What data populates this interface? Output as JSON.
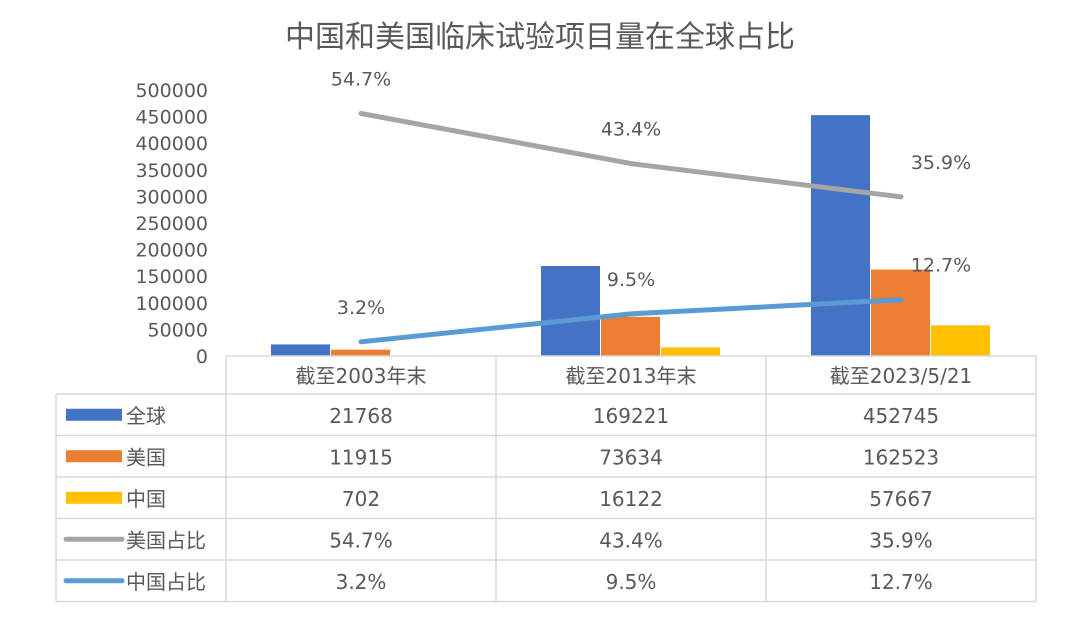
{
  "chart_data": {
    "type": "bar",
    "title": "中国和美国临床试验项目量在全球占比",
    "categories": [
      "截至2003年末",
      "截至2013年末",
      "截至2023/5/21"
    ],
    "ylim": [
      0,
      500000
    ],
    "yticks": [
      "0",
      "50000",
      "100000",
      "150000",
      "200000",
      "250000",
      "300000",
      "350000",
      "400000",
      "450000",
      "500000"
    ],
    "grid": false,
    "legend": "data-table",
    "series": [
      {
        "name": "全球",
        "kind": "bar",
        "color": "#4472C4",
        "values": [
          21768,
          169221,
          452745
        ],
        "labels": [
          "21768",
          "169221",
          "452745"
        ]
      },
      {
        "name": "美国",
        "kind": "bar",
        "color": "#ED7D31",
        "values": [
          11915,
          73634,
          162523
        ],
        "labels": [
          "11915",
          "73634",
          "162523"
        ]
      },
      {
        "name": "中国",
        "kind": "bar",
        "color": "#FFC000",
        "values": [
          702,
          16122,
          57667
        ],
        "labels": [
          "702",
          "16122",
          "57667"
        ]
      },
      {
        "name": "美国占比",
        "kind": "line",
        "color": "#A5A5A5",
        "values": [
          54.7,
          43.4,
          35.9
        ],
        "labels": [
          "54.7%",
          "43.4%",
          "35.9%"
        ]
      },
      {
        "name": "中国占比",
        "kind": "line",
        "color": "#5B9BD5",
        "values": [
          3.2,
          9.5,
          12.7
        ],
        "labels": [
          "3.2%",
          "9.5%",
          "12.7%"
        ]
      }
    ]
  }
}
